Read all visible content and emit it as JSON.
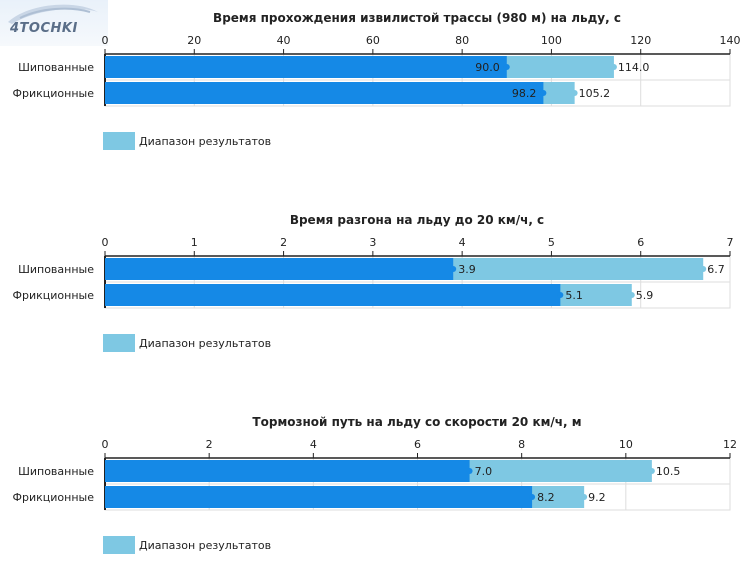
{
  "logo": {
    "text": "4TOCHKI"
  },
  "colors": {
    "min": "#1589e6",
    "range": "#7ec8e3",
    "grid": "#dddddd",
    "axis": "#222222"
  },
  "chart_data": [
    {
      "type": "bar",
      "orientation": "horizontal",
      "title": "Время прохождения извилистой трассы (980 м) на льду, с",
      "categories": [
        "Шипованные",
        "Фрикционные"
      ],
      "series": [
        {
          "name": "",
          "values": [
            90.0,
            98.2
          ]
        },
        {
          "name": "Диапазон результатов",
          "values": [
            114.0,
            105.2
          ]
        }
      ],
      "labels_min": [
        "90.0",
        "98.2"
      ],
      "labels_max": [
        "114.0",
        "105.2"
      ],
      "xlim": [
        0,
        140
      ],
      "xticks": [
        "0",
        "20",
        "40",
        "60",
        "80",
        "100",
        "120",
        "140"
      ],
      "legend": "Диапазон результатов"
    },
    {
      "type": "bar",
      "orientation": "horizontal",
      "title": "Время разгона на льду до 20 км/ч, с",
      "categories": [
        "Шипованные",
        "Фрикционные"
      ],
      "series": [
        {
          "name": "",
          "values": [
            3.9,
            5.1
          ]
        },
        {
          "name": "Диапазон результатов",
          "values": [
            6.7,
            5.9
          ]
        }
      ],
      "labels_min": [
        "3.9",
        "5.1"
      ],
      "labels_max": [
        "6.7",
        "5.9"
      ],
      "xlim": [
        0,
        7
      ],
      "xticks": [
        "0",
        "1",
        "2",
        "3",
        "4",
        "5",
        "6",
        "7"
      ],
      "legend": "Диапазон результатов"
    },
    {
      "type": "bar",
      "orientation": "horizontal",
      "title": "Тормозной путь на льду со скорости 20 км/ч, м",
      "categories": [
        "Шипованные",
        "Фрикционные"
      ],
      "series": [
        {
          "name": "",
          "values": [
            7.0,
            8.2
          ]
        },
        {
          "name": "Диапазон результатов",
          "values": [
            10.5,
            9.2
          ]
        }
      ],
      "labels_min": [
        "7.0",
        "8.2"
      ],
      "labels_max": [
        "10.5",
        "9.2"
      ],
      "xlim": [
        0,
        12
      ],
      "xticks": [
        "0",
        "2",
        "4",
        "6",
        "8",
        "10",
        "12"
      ],
      "legend": "Диапазон результатов"
    }
  ]
}
